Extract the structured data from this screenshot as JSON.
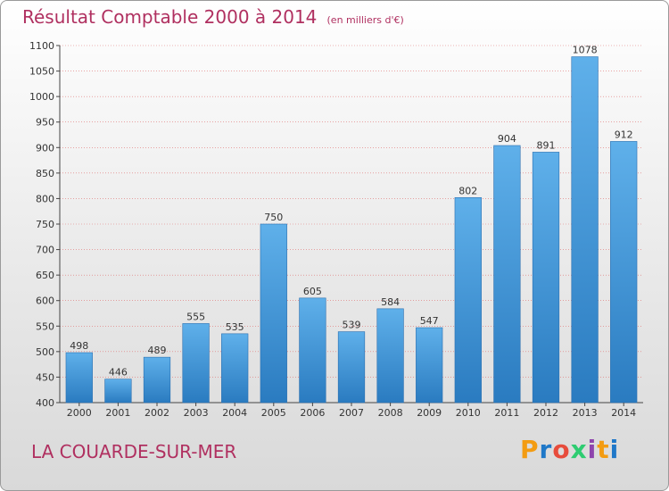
{
  "header": {
    "title": "Résultat Comptable 2000 à 2014",
    "subtitle": "(en milliers d'€)"
  },
  "footer": {
    "commune": "LA COUARDE-SUR-MER",
    "brand": "Proxiti",
    "brand_colors": [
      "#f39c12",
      "#1f78c8",
      "#e74c3c",
      "#2ecc71",
      "#8e44ad",
      "#f39c12",
      "#1f78c8"
    ]
  },
  "colors": {
    "title": "#b03060",
    "bar_light": "#5fb0ea",
    "bar_dark": "#2a7bc0",
    "grid": "#e07070",
    "axis": "#444444"
  },
  "chart_data": {
    "type": "bar",
    "title": "Résultat Comptable 2000 à 2014",
    "subtitle": "(en milliers d'€)",
    "categories": [
      "2000",
      "2001",
      "2002",
      "2003",
      "2004",
      "2005",
      "2006",
      "2007",
      "2008",
      "2009",
      "2010",
      "2011",
      "2012",
      "2013",
      "2014"
    ],
    "values": [
      498,
      446,
      489,
      555,
      535,
      750,
      605,
      539,
      584,
      547,
      802,
      904,
      891,
      1078,
      912
    ],
    "ylim": [
      400,
      1100
    ],
    "yticks": [
      400,
      450,
      500,
      550,
      600,
      650,
      700,
      750,
      800,
      850,
      900,
      950,
      1000,
      1050,
      1100
    ],
    "grid": true,
    "legend": "none"
  }
}
